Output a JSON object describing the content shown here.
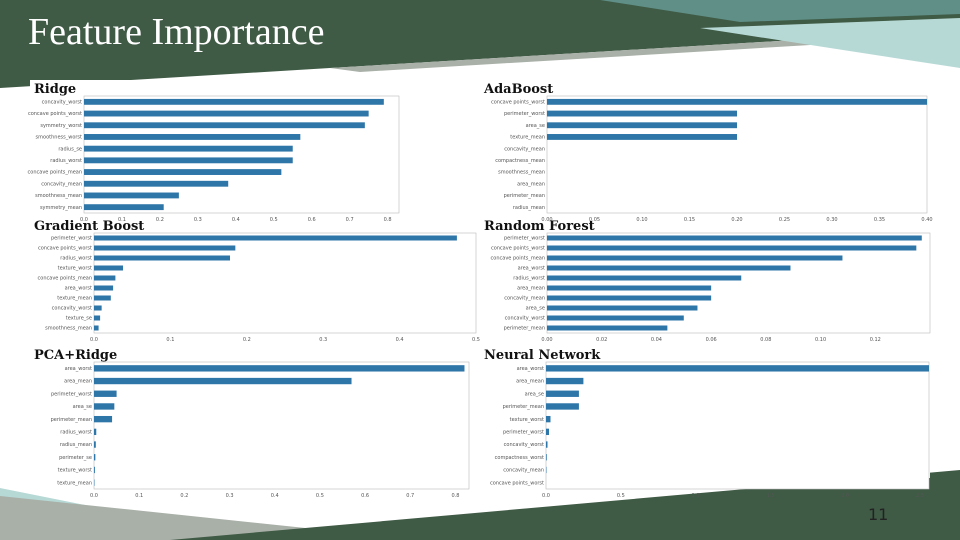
{
  "slide": {
    "title": "Feature Importance",
    "page_number": "11"
  },
  "theme": {
    "dark_green": "#3f5a45",
    "teal": "#5f8f86",
    "light_teal": "#b7d9d6",
    "gray": "#a9b0a8",
    "bar_color": "#2e75a8"
  },
  "chart_data": [
    {
      "type": "bar",
      "orientation": "horizontal",
      "title": "Ridge",
      "categories": [
        "concavity_worst",
        "concave points_worst",
        "symmetry_worst",
        "smoothness_worst",
        "radius_se",
        "radius_worst",
        "concave points_mean",
        "concavity_mean",
        "smoothness_mean",
        "symmetry_mean"
      ],
      "values": [
        0.79,
        0.75,
        0.74,
        0.57,
        0.55,
        0.55,
        0.52,
        0.38,
        0.25,
        0.21
      ],
      "xlim": [
        0,
        0.83
      ],
      "xticks": [
        "0.0",
        "0.1",
        "0.2",
        "0.3",
        "0.4",
        "0.5",
        "0.6",
        "0.7",
        "0.8"
      ]
    },
    {
      "type": "bar",
      "orientation": "horizontal",
      "title": "AdaBoost",
      "categories": [
        "concave points_worst",
        "perimeter_worst",
        "area_se",
        "texture_mean",
        "concavity_mean",
        "compactness_mean",
        "smoothness_mean",
        "area_mean",
        "perimeter_mean",
        "radius_mean"
      ],
      "values": [
        0.4,
        0.2,
        0.2,
        0.2,
        0,
        0,
        0,
        0,
        0,
        0
      ],
      "xlim": [
        0,
        0.4
      ],
      "xticks": [
        "0.00",
        "0.05",
        "0.10",
        "0.15",
        "0.20",
        "0.25",
        "0.30",
        "0.35",
        "0.40"
      ]
    },
    {
      "type": "bar",
      "orientation": "horizontal",
      "title": "Gradient Boost",
      "categories": [
        "perimeter_worst",
        "concave points_worst",
        "radius_worst",
        "texture_worst",
        "concave points_mean",
        "area_worst",
        "texture_mean",
        "concavity_worst",
        "texture_se",
        "smoothness_mean"
      ],
      "values": [
        0.475,
        0.185,
        0.178,
        0.038,
        0.028,
        0.025,
        0.022,
        0.01,
        0.008,
        0.006
      ],
      "xlim": [
        0,
        0.5
      ],
      "xticks": [
        "0.0",
        "0.1",
        "0.2",
        "0.3",
        "0.4",
        "0.5"
      ]
    },
    {
      "type": "bar",
      "orientation": "horizontal",
      "title": "Random Forest",
      "categories": [
        "perimeter_worst",
        "concave points_worst",
        "concave points_mean",
        "area_worst",
        "radius_worst",
        "area_mean",
        "concavity_mean",
        "area_se",
        "concavity_worst",
        "perimeter_mean"
      ],
      "values": [
        0.137,
        0.135,
        0.108,
        0.089,
        0.071,
        0.06,
        0.06,
        0.055,
        0.05,
        0.044
      ],
      "xlim": [
        0,
        0.14
      ],
      "xticks": [
        "0.00",
        "0.02",
        "0.04",
        "0.06",
        "0.08",
        "0.10",
        "0.12"
      ]
    },
    {
      "type": "bar",
      "orientation": "horizontal",
      "title": "PCA+Ridge",
      "categories": [
        "area_worst",
        "area_mean",
        "perimeter_worst",
        "area_se",
        "perimeter_mean",
        "radius_worst",
        "radius_mean",
        "perimeter_se",
        "texture_worst",
        "texture_mean"
      ],
      "values": [
        0.82,
        0.57,
        0.05,
        0.045,
        0.04,
        0.005,
        0.004,
        0.003,
        0.002,
        0.001
      ],
      "xlim": [
        0,
        0.83
      ],
      "xticks": [
        "0.0",
        "0.1",
        "0.2",
        "0.3",
        "0.4",
        "0.5",
        "0.6",
        "0.7",
        "0.8"
      ]
    },
    {
      "type": "bar",
      "orientation": "horizontal",
      "title": "Neural Network",
      "categories": [
        "area_worst",
        "area_mean",
        "area_se",
        "perimeter_mean",
        "texture_worst",
        "perimeter_worst",
        "concavity_worst",
        "compactness_worst",
        "concavity_mean",
        "concave points_worst"
      ],
      "values": [
        2.56,
        0.25,
        0.22,
        0.22,
        0.03,
        0.02,
        0.01,
        0.005,
        0.003,
        0.002
      ],
      "xlim": [
        0,
        2.56
      ],
      "xticks": [
        "0.0",
        "0.5",
        "1.0",
        "1.5",
        "2.0",
        "2.5"
      ]
    }
  ]
}
